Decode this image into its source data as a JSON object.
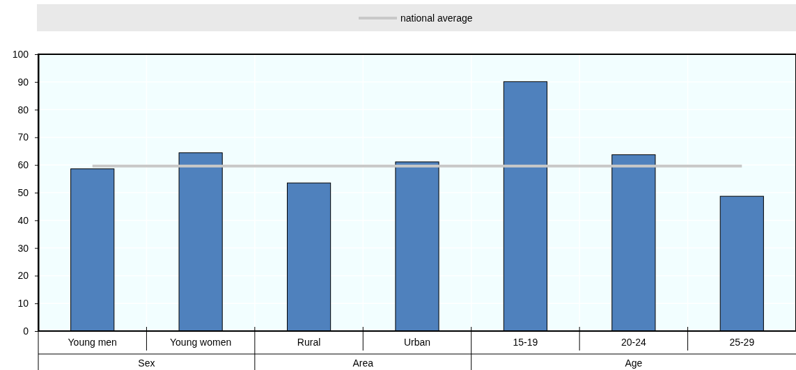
{
  "chart_data": {
    "type": "bar",
    "categories": [
      "Young men",
      "Young women",
      "Rural",
      "Urban",
      "15-19",
      "20-24",
      "25-29"
    ],
    "series": [
      {
        "color": "#4f81bd",
        "values": [
          58.6,
          64.4,
          53.5,
          61.1,
          90.1,
          63.7,
          48.7
        ]
      },
      {
        "type": "line",
        "name": "national average",
        "color": "#c8c8c8",
        "values": [
          59.6,
          59.6,
          59.6,
          59.6,
          59.6,
          59.6,
          59.6
        ]
      }
    ],
    "ylim": [
      0,
      100
    ],
    "yticks": [
      0,
      10,
      20,
      30,
      40,
      50,
      60,
      70,
      80,
      90,
      100
    ],
    "grid": true,
    "legend": "top",
    "annotations": [
      "Sex",
      "Area",
      "Age"
    ]
  }
}
